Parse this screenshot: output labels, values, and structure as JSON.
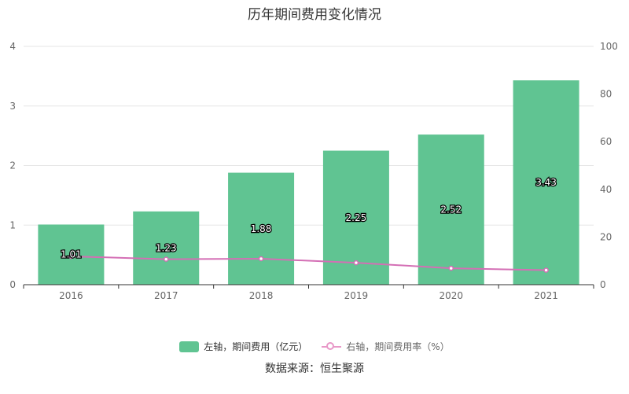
{
  "title": "历年期间费用变化情况",
  "source": "数据来源：恒生聚源",
  "colors": {
    "bar": "#60c492",
    "line": "#d46fb5",
    "grid": "#e6e6e6",
    "axis": "#333333",
    "tick": "#666666"
  },
  "chart_data": {
    "type": "bar",
    "categories": [
      "2016",
      "2017",
      "2018",
      "2019",
      "2020",
      "2021"
    ],
    "series": [
      {
        "name": "左轴，期间费用（亿元）",
        "type": "bar",
        "axis": "left",
        "values": [
          1.01,
          1.23,
          1.88,
          2.25,
          2.52,
          3.43
        ],
        "labels": [
          "1.01",
          "1.23",
          "1.88",
          "2.25",
          "2.52",
          "3.43"
        ]
      },
      {
        "name": "右轴，期间费用率（%）",
        "type": "line",
        "axis": "right",
        "values": [
          11.9,
          10.7,
          10.9,
          9.2,
          6.9,
          6.1
        ]
      }
    ],
    "y_left": {
      "min": 0,
      "max": 4,
      "ticks": [
        "0",
        "1",
        "2",
        "3",
        "4"
      ]
    },
    "y_right": {
      "min": 0,
      "max": 100,
      "ticks": [
        "0",
        "20",
        "40",
        "60",
        "80",
        "100"
      ]
    },
    "grid": true,
    "legend_position": "bottom"
  }
}
